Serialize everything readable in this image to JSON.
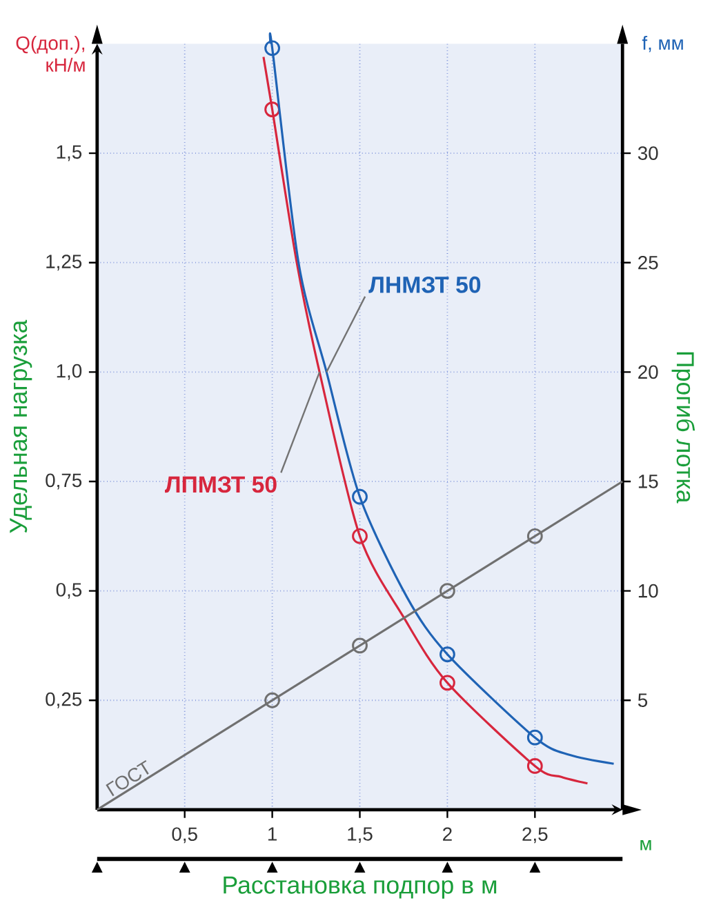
{
  "chart_data": {
    "type": "line",
    "xlabel": "Расстановка подпор в м",
    "ylabel": "Удельная нагрузка",
    "y2label": "Прогиб лотка",
    "annotations": [
      "Q(доп.), кН/м",
      "f, мм",
      "м"
    ],
    "xlim": [
      0,
      3
    ],
    "xticks": [
      {
        "value": 0.5,
        "label": "0,5"
      },
      1,
      {
        "value": 1.5,
        "label": "1,5"
      },
      2,
      {
        "value": 2.5,
        "label": "2,5"
      }
    ],
    "ylim": [
      0,
      1.75
    ],
    "yticks": [
      {
        "value": 0.25,
        "label": "0,25"
      },
      {
        "value": 0.5,
        "label": "0,5"
      },
      {
        "value": 0.75,
        "label": "0,75"
      },
      {
        "value": 1.0,
        "label": "1,0"
      },
      {
        "value": 1.25,
        "label": "1,25"
      },
      {
        "value": 1.5,
        "label": "1,5"
      }
    ],
    "y2lim": [
      0,
      35
    ],
    "y2ticks": [
      5,
      10,
      15,
      20,
      25,
      30
    ],
    "grid": true,
    "series": [
      {
        "name": "ЛПМЗТ 50",
        "color": "#d7263d",
        "axis": "y",
        "marker": "none",
        "x": [
          0.95,
          1,
          1.14,
          1.27,
          1.5,
          1.75,
          2,
          2.5,
          2.65,
          2.8
        ],
        "values": [
          1.72,
          1.6,
          1.25,
          1.0,
          0.625,
          0.44,
          0.29,
          0.1,
          0.075,
          0.06
        ]
      },
      {
        "name": "ЛНМЗТ 50",
        "color": "#1f63b5",
        "axis": "y2",
        "marker": "none",
        "x": [
          0.99,
          1,
          1.15,
          1.31,
          1.5,
          1.77,
          2,
          2.5,
          2.7,
          2.95
        ],
        "values": [
          35,
          34.8,
          25,
          20,
          14.3,
          9.7,
          7.1,
          3.3,
          2.5,
          2.1
        ]
      },
      {
        "name": "ГОСТ",
        "color": "#707070",
        "axis": "y2",
        "marker": "none",
        "x": [
          0,
          3
        ],
        "values": [
          0,
          15
        ]
      },
      {
        "type": "scatter",
        "color": "#d7263d",
        "axis": "y",
        "marker": "circle",
        "x": [
          1,
          1.5,
          2,
          2.5
        ],
        "values": [
          1.6,
          0.625,
          0.29,
          0.1
        ]
      },
      {
        "type": "scatter",
        "color": "#1f63b5",
        "axis": "y2",
        "marker": "circle",
        "x": [
          1,
          1.5,
          2,
          2.5
        ],
        "values": [
          34.8,
          14.3,
          7.1,
          3.3
        ]
      },
      {
        "type": "scatter",
        "color": "#707070",
        "axis": "y2",
        "marker": "circle",
        "x": [
          1,
          1.5,
          2,
          2.5
        ],
        "values": [
          5,
          7.5,
          10,
          12.5
        ]
      }
    ]
  }
}
